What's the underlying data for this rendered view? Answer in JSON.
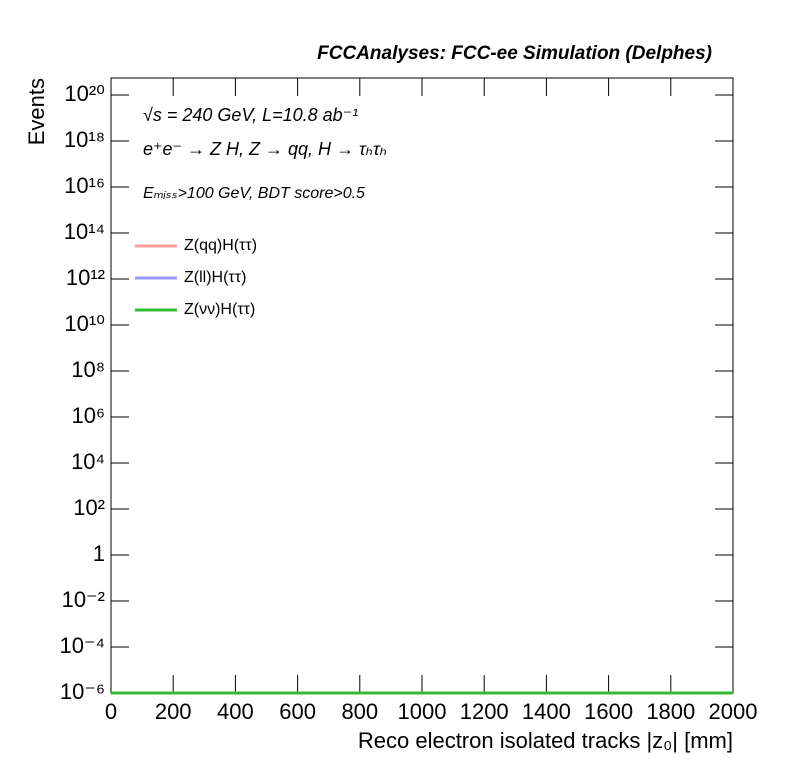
{
  "chart_data": {
    "type": "line",
    "title": "FCCAnalyses: FCC-ee Simulation (Delphes)",
    "annotations": [
      "√s = 240 GeV, L=10.8 ab⁻¹",
      "e⁺e⁻ → Z H, Z → qq, H → τₕτₕ",
      "Eₘᵢₛₛ>100 GeV, BDT score>0.5"
    ],
    "x_label": "Reco electron isolated tracks |z₀| [mm]",
    "y_label": "Events",
    "x": [
      0,
      2000
    ],
    "series": [
      {
        "name": "Z(qq)H(ττ)",
        "color": "#ff9999",
        "values": [
          1e-06,
          1e-06
        ]
      },
      {
        "name": "Z(ll)H(ττ)",
        "color": "#9999ff",
        "values": [
          1e-06,
          1e-06
        ]
      },
      {
        "name": "Z(νν)H(ττ)",
        "color": "#33bb33",
        "values": [
          1e-06,
          1e-06
        ]
      }
    ],
    "xlim": [
      0,
      2000
    ],
    "xticks": [
      0,
      200,
      400,
      600,
      800,
      1000,
      1200,
      1400,
      1600,
      1800,
      2000
    ],
    "ylim": [
      1e-06,
      5.5e+20
    ],
    "log_y": true,
    "yticks": [
      {
        "value": 1e-06,
        "label": "10⁻⁶"
      },
      {
        "value": 0.0001,
        "label": "10⁻⁴"
      },
      {
        "value": 0.01,
        "label": "10⁻²"
      },
      1,
      {
        "value": 100.0,
        "label": "10²"
      },
      {
        "value": 10000.0,
        "label": "10⁴"
      },
      {
        "value": 1000000.0,
        "label": "10⁶"
      },
      {
        "value": 100000000.0,
        "label": "10⁸"
      },
      {
        "value": 10000000000.0,
        "label": "10¹⁰"
      },
      {
        "value": 1000000000000.0,
        "label": "10¹²"
      },
      {
        "value": 100000000000000.0,
        "label": "10¹⁴"
      },
      {
        "value": 1e+16,
        "label": "10¹⁶"
      },
      {
        "value": 1e+18,
        "label": "10¹⁸"
      },
      {
        "value": 1e+20,
        "label": "10²⁰"
      }
    ],
    "grid": false,
    "legend": "top-left"
  }
}
